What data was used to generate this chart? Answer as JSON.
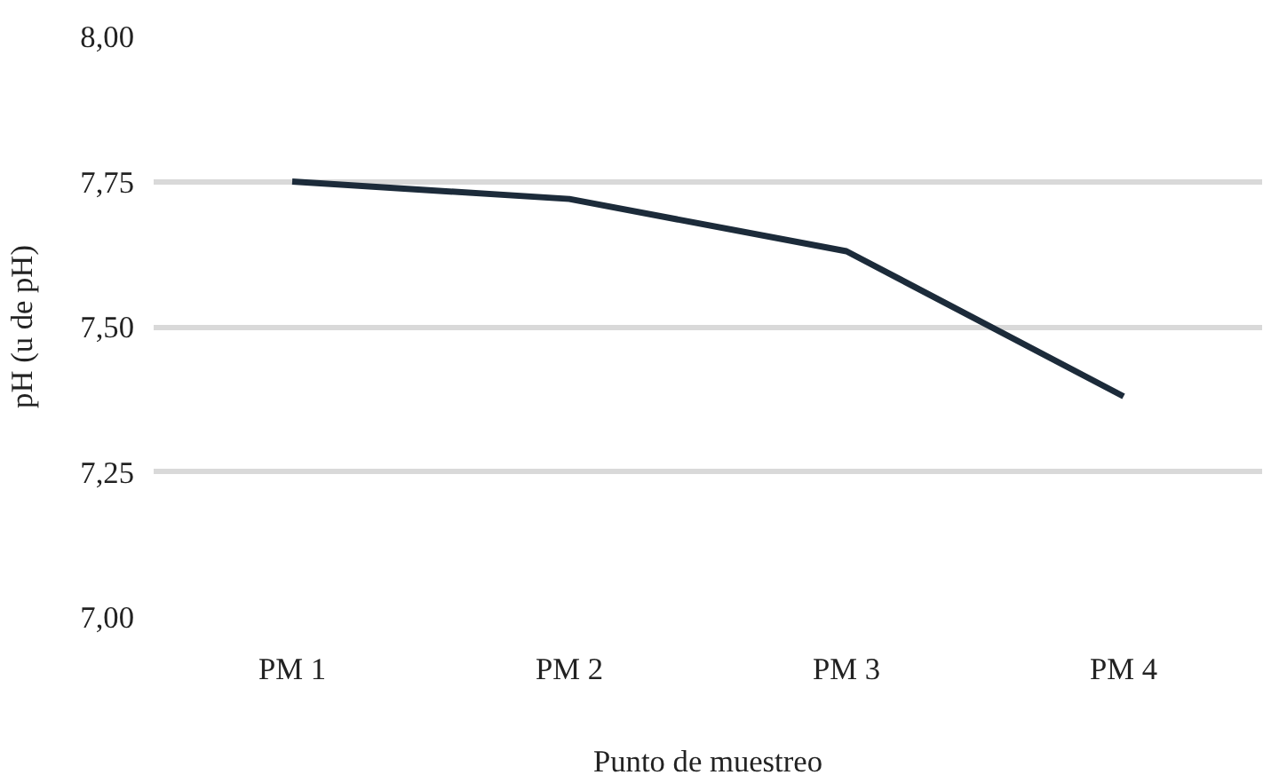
{
  "chart_data": {
    "type": "line",
    "xlabel": "Punto de muestreo",
    "ylabel": "pH (u de pH)",
    "categories": [
      "PM 1",
      "PM 2",
      "PM 3",
      "PM 4"
    ],
    "series": [
      {
        "color": "#1c2b3a",
        "values": [
          7.75,
          7.72,
          7.63,
          7.38
        ]
      }
    ],
    "ylim": [
      7.0,
      8.0
    ],
    "yticks": [
      {
        "value": 7.0,
        "label": "7,00"
      },
      {
        "value": 7.25,
        "label": "7,25"
      },
      {
        "value": 7.5,
        "label": "7,50"
      },
      {
        "value": 7.75,
        "label": "7,75"
      },
      {
        "value": 8.0,
        "label": "8,00"
      }
    ],
    "grid": "y",
    "marker": "none",
    "line_style": "solid"
  }
}
